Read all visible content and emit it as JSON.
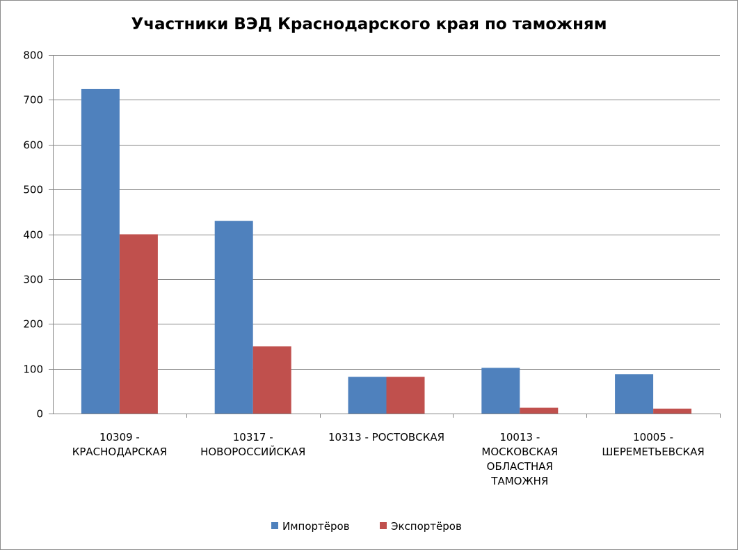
{
  "chart_data": {
    "type": "bar",
    "title": "Участники ВЭД Краснодарского края по таможням",
    "xlabel": "",
    "ylabel": "",
    "ylim": [
      0,
      800
    ],
    "yticks": [
      0,
      100,
      200,
      300,
      400,
      500,
      600,
      700,
      800
    ],
    "grid": true,
    "legend_position": "bottom",
    "categories": [
      [
        "10309 -",
        "КРАСНОДАРСКАЯ"
      ],
      [
        "10317 -",
        "НОВОРОССИЙСКАЯ"
      ],
      [
        "10313 - РОСТОВСКАЯ"
      ],
      [
        "10013 -",
        "МОСКОВСКАЯ",
        "ОБЛАСТНАЯ",
        "ТАМОЖНЯ"
      ],
      [
        "10005 -",
        "ШЕРЕМЕТЬЕВСКАЯ"
      ]
    ],
    "series": [
      {
        "name": "Импортёров",
        "color": "#4f81bd",
        "values": [
          724,
          430,
          82,
          102,
          88
        ]
      },
      {
        "name": "Экспортёров",
        "color": "#c0504d",
        "values": [
          400,
          150,
          82,
          13,
          11
        ]
      }
    ]
  }
}
